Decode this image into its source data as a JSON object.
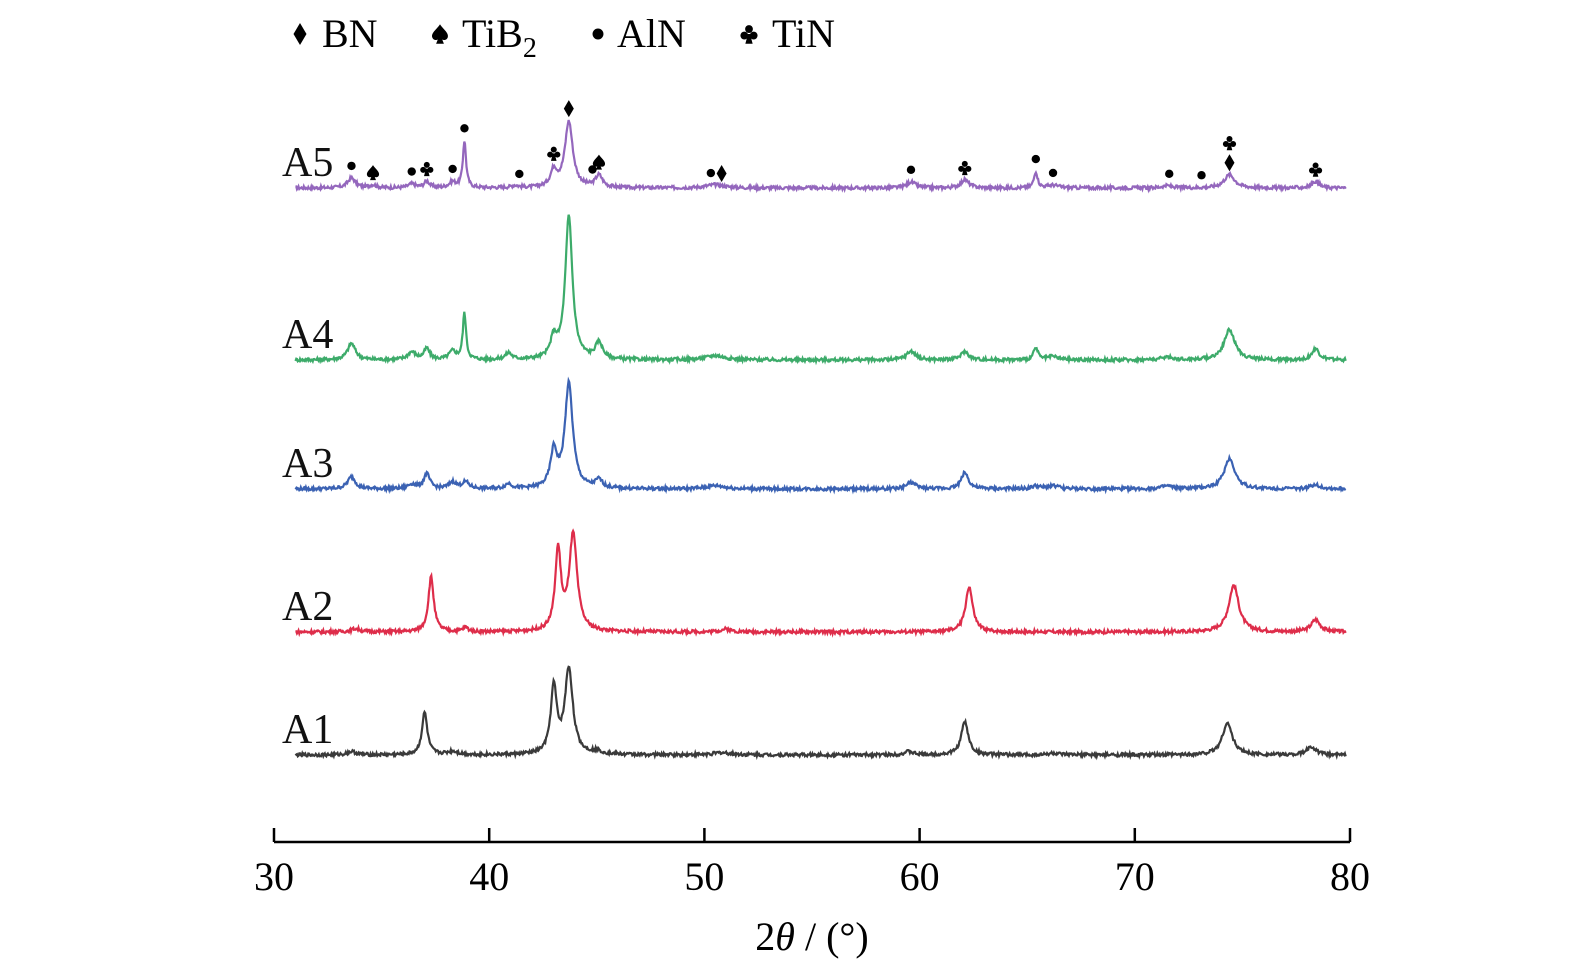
{
  "chart_data": {
    "type": "line",
    "title": "",
    "xlabel": "2θ / (°)",
    "xlabel_parts": {
      "two": "2",
      "theta": "θ",
      "unit": " / (°)"
    },
    "ylabel": "",
    "xlim": [
      30,
      80
    ],
    "xticks": [
      30,
      40,
      50,
      60,
      70,
      80
    ],
    "xtick_labels": [
      "30",
      "40",
      "50",
      "60",
      "70",
      "80"
    ],
    "grid": false,
    "legend": {
      "placement": "top-left",
      "entries": [
        {
          "symbol": "diamond",
          "label": "BN",
          "sub": ""
        },
        {
          "symbol": "spade",
          "label": "TiB",
          "sub": "2"
        },
        {
          "symbol": "dot",
          "label": "AlN",
          "sub": ""
        },
        {
          "symbol": "club",
          "label": "TiN",
          "sub": ""
        }
      ]
    },
    "series": [
      {
        "name": "A5",
        "color": "#9467bd",
        "baseline": 0,
        "peaks": [
          {
            "x": 33.6,
            "h": 0.18,
            "w": 0.22
          },
          {
            "x": 34.6,
            "h": 0.05,
            "w": 0.2
          },
          {
            "x": 36.4,
            "h": 0.07,
            "w": 0.2
          },
          {
            "x": 37.1,
            "h": 0.12,
            "w": 0.15
          },
          {
            "x": 38.3,
            "h": 0.1,
            "w": 0.2
          },
          {
            "x": 38.85,
            "h": 0.85,
            "w": 0.09
          },
          {
            "x": 41.2,
            "h": 0.04,
            "w": 0.2
          },
          {
            "x": 43.0,
            "h": 0.3,
            "w": 0.18
          },
          {
            "x": 43.7,
            "h": 1.2,
            "w": 0.22
          },
          {
            "x": 45.1,
            "h": 0.22,
            "w": 0.2
          },
          {
            "x": 50.5,
            "h": 0.06,
            "w": 0.5
          },
          {
            "x": 59.6,
            "h": 0.11,
            "w": 0.25
          },
          {
            "x": 62.1,
            "h": 0.15,
            "w": 0.22
          },
          {
            "x": 65.4,
            "h": 0.3,
            "w": 0.1
          },
          {
            "x": 66.2,
            "h": 0.05,
            "w": 0.3
          },
          {
            "x": 71.5,
            "h": 0.04,
            "w": 0.3
          },
          {
            "x": 74.4,
            "h": 0.24,
            "w": 0.3
          },
          {
            "x": 78.4,
            "h": 0.12,
            "w": 0.2
          }
        ],
        "markers": [
          {
            "x": 33.6,
            "symbols": [
              "dot"
            ]
          },
          {
            "x": 34.6,
            "symbols": [
              "spade"
            ]
          },
          {
            "x": 36.4,
            "symbols": [
              "dot"
            ]
          },
          {
            "x": 37.1,
            "symbols": [
              "club"
            ]
          },
          {
            "x": 38.3,
            "symbols": [
              "dot"
            ]
          },
          {
            "x": 38.85,
            "symbols": [
              "dot"
            ]
          },
          {
            "x": 41.4,
            "symbols": [
              "dot"
            ]
          },
          {
            "x": 43.0,
            "symbols": [
              "club"
            ]
          },
          {
            "x": 43.7,
            "symbols": [
              "diamond"
            ]
          },
          {
            "x": 44.8,
            "symbols": [
              "dot"
            ]
          },
          {
            "x": 45.1,
            "symbols": [
              "spade"
            ]
          },
          {
            "x": 50.3,
            "symbols": [
              "dot"
            ]
          },
          {
            "x": 50.8,
            "symbols": [
              "diamond"
            ]
          },
          {
            "x": 59.6,
            "symbols": [
              "dot"
            ]
          },
          {
            "x": 62.1,
            "symbols": [
              "club"
            ]
          },
          {
            "x": 65.4,
            "symbols": [
              "dot"
            ]
          },
          {
            "x": 66.2,
            "symbols": [
              "dot"
            ]
          },
          {
            "x": 71.6,
            "symbols": [
              "dot"
            ]
          },
          {
            "x": 73.1,
            "symbols": [
              "dot"
            ]
          },
          {
            "x": 74.4,
            "symbols": [
              "club",
              "diamond"
            ]
          },
          {
            "x": 78.4,
            "symbols": [
              "club"
            ]
          }
        ]
      },
      {
        "name": "A4",
        "color": "#3dab6a",
        "baseline": 0,
        "peaks": [
          {
            "x": 33.6,
            "h": 0.3,
            "w": 0.22
          },
          {
            "x": 36.4,
            "h": 0.14,
            "w": 0.22
          },
          {
            "x": 37.1,
            "h": 0.2,
            "w": 0.16
          },
          {
            "x": 38.3,
            "h": 0.15,
            "w": 0.2
          },
          {
            "x": 38.85,
            "h": 0.85,
            "w": 0.09
          },
          {
            "x": 40.9,
            "h": 0.12,
            "w": 0.18
          },
          {
            "x": 43.0,
            "h": 0.35,
            "w": 0.18
          },
          {
            "x": 43.7,
            "h": 2.6,
            "w": 0.2
          },
          {
            "x": 45.1,
            "h": 0.3,
            "w": 0.2
          },
          {
            "x": 50.5,
            "h": 0.08,
            "w": 0.5
          },
          {
            "x": 59.6,
            "h": 0.16,
            "w": 0.25
          },
          {
            "x": 62.1,
            "h": 0.15,
            "w": 0.22
          },
          {
            "x": 65.4,
            "h": 0.22,
            "w": 0.12
          },
          {
            "x": 66.2,
            "h": 0.06,
            "w": 0.3
          },
          {
            "x": 71.5,
            "h": 0.05,
            "w": 0.3
          },
          {
            "x": 74.4,
            "h": 0.55,
            "w": 0.3
          },
          {
            "x": 78.4,
            "h": 0.2,
            "w": 0.2
          }
        ]
      },
      {
        "name": "A3",
        "color": "#3b62b3",
        "baseline": 0,
        "peaks": [
          {
            "x": 33.6,
            "h": 0.22,
            "w": 0.22
          },
          {
            "x": 36.4,
            "h": 0.08,
            "w": 0.22
          },
          {
            "x": 37.1,
            "h": 0.27,
            "w": 0.17
          },
          {
            "x": 38.3,
            "h": 0.12,
            "w": 0.2
          },
          {
            "x": 38.9,
            "h": 0.12,
            "w": 0.2
          },
          {
            "x": 40.9,
            "h": 0.09,
            "w": 0.18
          },
          {
            "x": 43.0,
            "h": 0.65,
            "w": 0.18
          },
          {
            "x": 43.7,
            "h": 1.9,
            "w": 0.22
          },
          {
            "x": 45.1,
            "h": 0.15,
            "w": 0.2
          },
          {
            "x": 50.5,
            "h": 0.06,
            "w": 0.5
          },
          {
            "x": 59.6,
            "h": 0.12,
            "w": 0.25
          },
          {
            "x": 62.1,
            "h": 0.3,
            "w": 0.2
          },
          {
            "x": 65.4,
            "h": 0.05,
            "w": 0.2
          },
          {
            "x": 66.2,
            "h": 0.06,
            "w": 0.3
          },
          {
            "x": 71.5,
            "h": 0.05,
            "w": 0.3
          },
          {
            "x": 74.4,
            "h": 0.55,
            "w": 0.3
          },
          {
            "x": 78.4,
            "h": 0.08,
            "w": 0.25
          }
        ]
      },
      {
        "name": "A2",
        "color": "#de2d4a",
        "baseline": 0,
        "peaks": [
          {
            "x": 33.8,
            "h": 0.06,
            "w": 0.25
          },
          {
            "x": 37.3,
            "h": 1.0,
            "w": 0.15
          },
          {
            "x": 38.9,
            "h": 0.08,
            "w": 0.15
          },
          {
            "x": 43.2,
            "h": 1.45,
            "w": 0.16
          },
          {
            "x": 43.9,
            "h": 1.75,
            "w": 0.22
          },
          {
            "x": 51.0,
            "h": 0.05,
            "w": 0.3
          },
          {
            "x": 62.3,
            "h": 0.82,
            "w": 0.2
          },
          {
            "x": 74.6,
            "h": 0.85,
            "w": 0.28
          },
          {
            "x": 78.4,
            "h": 0.22,
            "w": 0.25
          }
        ]
      },
      {
        "name": "A1",
        "color": "#3a3a3a",
        "baseline": 0,
        "peaks": [
          {
            "x": 33.6,
            "h": 0.06,
            "w": 0.25
          },
          {
            "x": 37.0,
            "h": 0.77,
            "w": 0.15
          },
          {
            "x": 38.3,
            "h": 0.06,
            "w": 0.3
          },
          {
            "x": 43.0,
            "h": 1.2,
            "w": 0.17
          },
          {
            "x": 43.7,
            "h": 1.55,
            "w": 0.22
          },
          {
            "x": 45.0,
            "h": 0.05,
            "w": 0.3
          },
          {
            "x": 50.8,
            "h": 0.04,
            "w": 0.5
          },
          {
            "x": 59.5,
            "h": 0.06,
            "w": 0.25
          },
          {
            "x": 62.1,
            "h": 0.6,
            "w": 0.2
          },
          {
            "x": 66.2,
            "h": 0.03,
            "w": 0.3
          },
          {
            "x": 74.3,
            "h": 0.58,
            "w": 0.28
          },
          {
            "x": 78.2,
            "h": 0.15,
            "w": 0.25
          }
        ]
      }
    ]
  }
}
